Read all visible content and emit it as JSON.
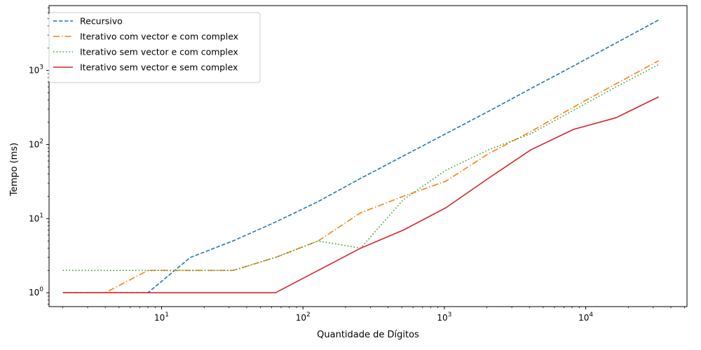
{
  "chart_data": {
    "type": "line",
    "title": "",
    "xlabel": "Quantidade de Dígitos",
    "ylabel": "Tempo (ms)",
    "xscale": "log",
    "yscale": "log",
    "xlim": [
      1.6,
      52000
    ],
    "ylim": [
      0.65,
      7500
    ],
    "legend_position": "top-left",
    "grid": false,
    "x": [
      2,
      4,
      8,
      16,
      32,
      64,
      128,
      256,
      512,
      1024,
      2048,
      4096,
      8192,
      16384,
      32768
    ],
    "x_ticks": [
      {
        "value": 10,
        "base": "10",
        "exp": "1"
      },
      {
        "value": 100,
        "base": "10",
        "exp": "2"
      },
      {
        "value": 1000,
        "base": "10",
        "exp": "3"
      },
      {
        "value": 10000,
        "base": "10",
        "exp": "4"
      }
    ],
    "y_ticks": [
      {
        "value": 1,
        "base": "10",
        "exp": "0"
      },
      {
        "value": 10,
        "base": "10",
        "exp": "1"
      },
      {
        "value": 100,
        "base": "10",
        "exp": "2"
      },
      {
        "value": 1000,
        "base": "10",
        "exp": "3"
      }
    ],
    "series": [
      {
        "name": "Recursivo",
        "color": "#1f77b4",
        "dash": "dashed",
        "values": [
          1,
          1,
          1,
          3,
          5,
          9,
          17,
          35,
          70,
          140,
          280,
          570,
          1150,
          2350,
          4800
        ]
      },
      {
        "name": "Iterativo com vector e com complex",
        "color": "#ff7f0e",
        "dash": "dashdot",
        "values": [
          1,
          1,
          2,
          2,
          2,
          3,
          5,
          12,
          20,
          32,
          75,
          150,
          320,
          660,
          1350
        ]
      },
      {
        "name": "Iterativo sem vector e com complex",
        "color": "#2ca02c",
        "dash": "dotted",
        "values": [
          2,
          2,
          2,
          2,
          2,
          3,
          5,
          4,
          18,
          45,
          85,
          140,
          290,
          600,
          1200
        ]
      },
      {
        "name": "Iterativo sem vector e sem complex",
        "color": "#d62728",
        "dash": "solid",
        "values": [
          1,
          1,
          1,
          1,
          1,
          1,
          2,
          4,
          7,
          14,
          35,
          85,
          160,
          230,
          440
        ]
      }
    ]
  }
}
